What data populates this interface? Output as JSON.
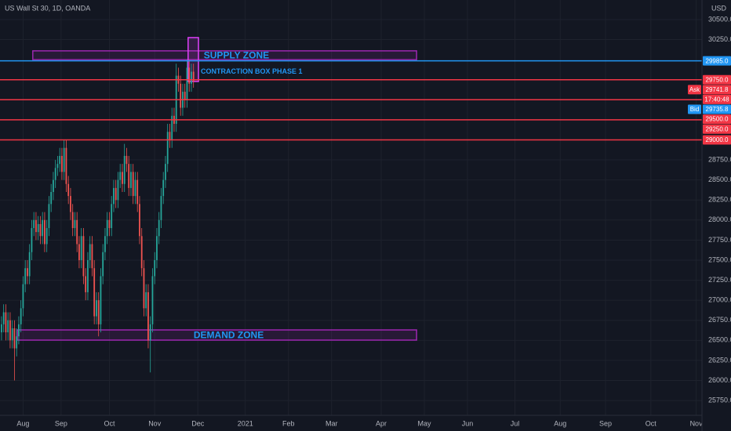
{
  "chart_data": {
    "type": "candlestick",
    "title": "US Wall St 30, 1D, OANDA",
    "currency": "USD",
    "grid": true,
    "up_color": "#26a69a",
    "down_color": "#ef5350",
    "xlim": [
      -0.7,
      324.7
    ],
    "ylim": [
      25565,
      30744
    ],
    "xticks": [
      {
        "value": 10,
        "label": "Aug"
      },
      {
        "value": 27.6,
        "label": "Sep"
      },
      {
        "value": 50,
        "label": "Oct"
      },
      {
        "value": 71,
        "label": "Nov"
      },
      {
        "value": 91,
        "label": "Dec"
      },
      {
        "value": 113,
        "label": "2021"
      },
      {
        "value": 133,
        "label": "Feb"
      },
      {
        "value": 153,
        "label": "Mar"
      },
      {
        "value": 176,
        "label": "Apr"
      },
      {
        "value": 196,
        "label": "May"
      },
      {
        "value": 216,
        "label": "Jun"
      },
      {
        "value": 238,
        "label": "Jul"
      },
      {
        "value": 259,
        "label": "Aug"
      },
      {
        "value": 280,
        "label": "Sep"
      },
      {
        "value": 301,
        "label": "Oct"
      },
      {
        "value": 322,
        "label": "Nov"
      }
    ],
    "yticks": [
      {
        "value": 30500,
        "label": "30500.0"
      },
      {
        "value": 30250,
        "label": "30250.0"
      },
      {
        "value": 28750,
        "label": "28750.0"
      },
      {
        "value": 28500,
        "label": "28500.0"
      },
      {
        "value": 28250,
        "label": "28250.0"
      },
      {
        "value": 28000,
        "label": "28000.0"
      },
      {
        "value": 27750,
        "label": "27750.0"
      },
      {
        "value": 27500,
        "label": "27500.0"
      },
      {
        "value": 27250,
        "label": "27250.0"
      },
      {
        "value": 27000,
        "label": "27000.0"
      },
      {
        "value": 26750,
        "label": "26750.0"
      },
      {
        "value": 26500,
        "label": "26500.0"
      },
      {
        "value": 26250,
        "label": "26250.0"
      },
      {
        "value": 26000,
        "label": "26000.0"
      },
      {
        "value": 25750,
        "label": "25750.0"
      }
    ],
    "ohlc": [
      [
        26600,
        26800,
        26500,
        26700
      ],
      [
        26700,
        26950,
        26600,
        26850
      ],
      [
        26850,
        26950,
        26500,
        26600
      ],
      [
        26600,
        26850,
        26500,
        26750
      ],
      [
        26750,
        26850,
        26400,
        26500
      ],
      [
        26500,
        26750,
        26400,
        26650
      ],
      [
        26650,
        26750,
        26000,
        26400
      ],
      [
        26400,
        26650,
        26300,
        26550
      ],
      [
        26550,
        26800,
        26450,
        26700
      ],
      [
        26700,
        27000,
        26600,
        26900
      ],
      [
        26900,
        27300,
        26800,
        27200
      ],
      [
        27200,
        27500,
        27100,
        27400
      ],
      [
        27400,
        27500,
        27200,
        27300
      ],
      [
        27300,
        27700,
        27200,
        27600
      ],
      [
        27600,
        28000,
        27500,
        27900
      ],
      [
        27900,
        28100,
        27800,
        28000
      ],
      [
        28000,
        28100,
        27750,
        27850
      ],
      [
        27850,
        28050,
        27750,
        27950
      ],
      [
        27950,
        28050,
        27700,
        27800
      ],
      [
        27800,
        28100,
        27700,
        28000
      ],
      [
        28000,
        28100,
        27600,
        27700
      ],
      [
        27700,
        28000,
        27600,
        27900
      ],
      [
        27900,
        28300,
        27800,
        28200
      ],
      [
        28200,
        28450,
        28100,
        28350
      ],
      [
        28350,
        28600,
        28250,
        28500
      ],
      [
        28500,
        28750,
        28400,
        28650
      ],
      [
        28650,
        28800,
        28550,
        28700
      ],
      [
        28700,
        28900,
        28600,
        28800
      ],
      [
        28800,
        28900,
        28500,
        28600
      ],
      [
        28600,
        29000,
        28500,
        28900
      ],
      [
        28900,
        29000,
        28350,
        28450
      ],
      [
        28450,
        28550,
        28200,
        28300
      ],
      [
        28300,
        28400,
        28000,
        28100
      ],
      [
        28100,
        28200,
        27800,
        27900
      ],
      [
        27900,
        28100,
        27800,
        28000
      ],
      [
        28000,
        28100,
        27600,
        27700
      ],
      [
        27700,
        27800,
        27400,
        27500
      ],
      [
        27500,
        27900,
        27400,
        27800
      ],
      [
        27800,
        27900,
        27200,
        27300
      ],
      [
        27300,
        27400,
        27000,
        27100
      ],
      [
        27100,
        27600,
        27000,
        27500
      ],
      [
        27500,
        27800,
        27400,
        27700
      ],
      [
        27700,
        27800,
        27300,
        27400
      ],
      [
        27400,
        27500,
        26700,
        26800
      ],
      [
        26800,
        27100,
        26700,
        27000
      ],
      [
        27000,
        27100,
        26550,
        26700
      ],
      [
        26700,
        27400,
        26600,
        27300
      ],
      [
        27300,
        27700,
        27200,
        27600
      ],
      [
        27600,
        27900,
        27500,
        27800
      ],
      [
        27800,
        28100,
        27700,
        28000
      ],
      [
        28000,
        28100,
        27800,
        27900
      ],
      [
        27900,
        28300,
        27800,
        28200
      ],
      [
        28200,
        28500,
        28100,
        28400
      ],
      [
        28400,
        28500,
        28150,
        28250
      ],
      [
        28250,
        28600,
        28150,
        28500
      ],
      [
        28500,
        28700,
        28400,
        28600
      ],
      [
        28600,
        28700,
        28350,
        28450
      ],
      [
        28450,
        28950,
        28350,
        28800
      ],
      [
        28800,
        28900,
        28600,
        28700
      ],
      [
        28700,
        28800,
        28300,
        28400
      ],
      [
        28400,
        28700,
        28300,
        28600
      ],
      [
        28600,
        28700,
        28200,
        28300
      ],
      [
        28300,
        28600,
        28200,
        28500
      ],
      [
        28500,
        28600,
        28100,
        28200
      ],
      [
        28200,
        28300,
        27700,
        27800
      ],
      [
        27800,
        27900,
        27300,
        27400
      ],
      [
        27400,
        27500,
        26800,
        26900
      ],
      [
        26900,
        27200,
        26800,
        27100
      ],
      [
        27100,
        27200,
        26400,
        26500
      ],
      [
        26500,
        26800,
        26100,
        26700
      ],
      [
        26700,
        27400,
        26600,
        27300
      ],
      [
        27300,
        27600,
        27200,
        27500
      ],
      [
        27500,
        27900,
        27400,
        27800
      ],
      [
        27800,
        28100,
        27700,
        28000
      ],
      [
        28000,
        28400,
        27900,
        28300
      ],
      [
        28300,
        28600,
        28200,
        28500
      ],
      [
        28500,
        28800,
        28400,
        28700
      ],
      [
        28700,
        29200,
        28600,
        29100
      ],
      [
        29100,
        29200,
        28900,
        29000
      ],
      [
        29000,
        29400,
        28900,
        29300
      ],
      [
        29300,
        29400,
        29100,
        29200
      ],
      [
        29200,
        29950,
        29100,
        29800
      ],
      [
        29800,
        29900,
        29600,
        29700
      ],
      [
        29700,
        29800,
        29300,
        29400
      ],
      [
        29400,
        29700,
        29300,
        29600
      ],
      [
        29600,
        29700,
        29400,
        29500
      ],
      [
        29500,
        30000,
        29400,
        29900
      ],
      [
        29900,
        30000,
        29600,
        29700
      ],
      [
        29700,
        29950,
        29600,
        29850
      ],
      [
        29850,
        29950,
        29650,
        29730
      ]
    ],
    "price_lines": [
      {
        "value": 29985,
        "label": "29985.0",
        "color": "#2196f3"
      },
      {
        "value": 29750,
        "label": "29750.0",
        "color": "#f23645"
      },
      {
        "value": 29500,
        "label": "29500.0",
        "color": "#f23645"
      },
      {
        "value": 29250,
        "label": "29250.0",
        "color": "#f23645"
      },
      {
        "value": 29000,
        "label": "29000.0",
        "color": "#f23645"
      }
    ],
    "quote_badges": [
      {
        "name": "Ask",
        "value": 29741.8,
        "label": "29741.8",
        "color": "#f23645"
      },
      {
        "value": 29738,
        "label": "17:40:48",
        "color": "#f23645"
      },
      {
        "name": "Bid",
        "value": 29735.8,
        "label": "29735.8",
        "color": "#2196f3"
      }
    ],
    "zones": [
      {
        "label": "SUPPLY ZONE",
        "x0": 14.5,
        "x1": 192.4,
        "top": 30110,
        "bottom": 30000,
        "color": "#9c27b0"
      },
      {
        "label": "DEMAND ZONE",
        "x0": 7.3,
        "x1": 192.4,
        "top": 26630,
        "bottom": 26503,
        "color": "#9c27b0"
      },
      {
        "label": "CONTRACTION BOX PHASE 1",
        "x0": 86.5,
        "x1": 91.3,
        "top": 30275,
        "bottom": 29728,
        "color": "#e040fb"
      }
    ],
    "zone_text_color": "#2196f3"
  }
}
